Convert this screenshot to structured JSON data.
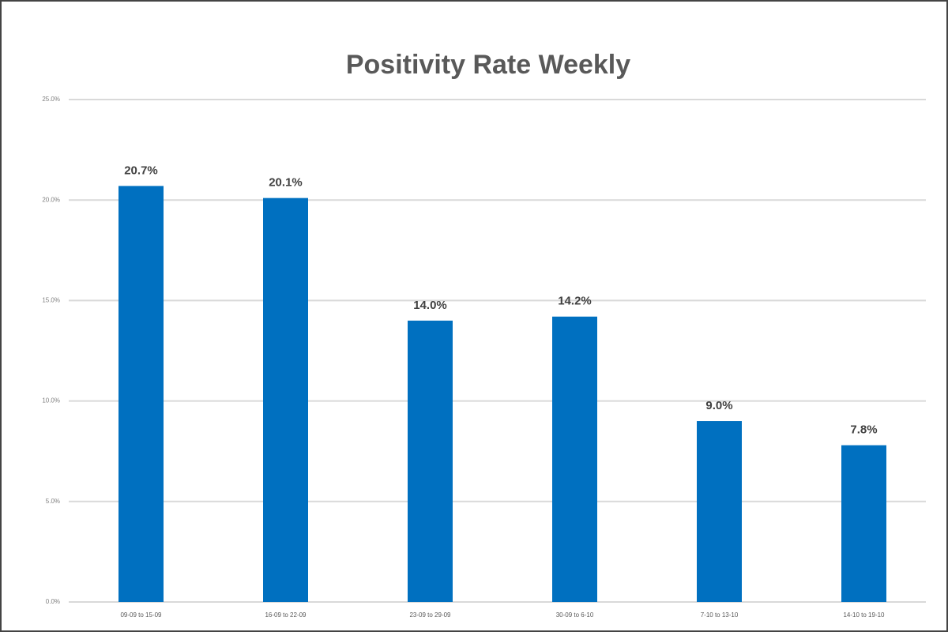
{
  "chart_data": {
    "type": "bar",
    "title": "Positivity Rate Weekly",
    "categories": [
      "09-09 to 15-09",
      "16-09 to 22-09",
      "23-09 to 29-09",
      "30-09 to 6-10",
      "7-10 to 13-10",
      "14-10 to 19-10"
    ],
    "values": [
      20.7,
      20.1,
      14.0,
      14.2,
      9.0,
      7.8
    ],
    "value_labels": [
      "20.7%",
      "20.1%",
      "14.0%",
      "14.2%",
      "9.0%",
      "7.8%"
    ],
    "color": "#0070c0",
    "ylim": [
      0,
      25
    ],
    "yticks": [
      {
        "value": 0,
        "label": "0.0%"
      },
      {
        "value": 5,
        "label": "5.0%"
      },
      {
        "value": 10,
        "label": "10.0%"
      },
      {
        "value": 15,
        "label": "15.0%"
      },
      {
        "value": 20,
        "label": "20.0%"
      },
      {
        "value": 25,
        "label": "25.0%"
      }
    ],
    "grid": true
  }
}
